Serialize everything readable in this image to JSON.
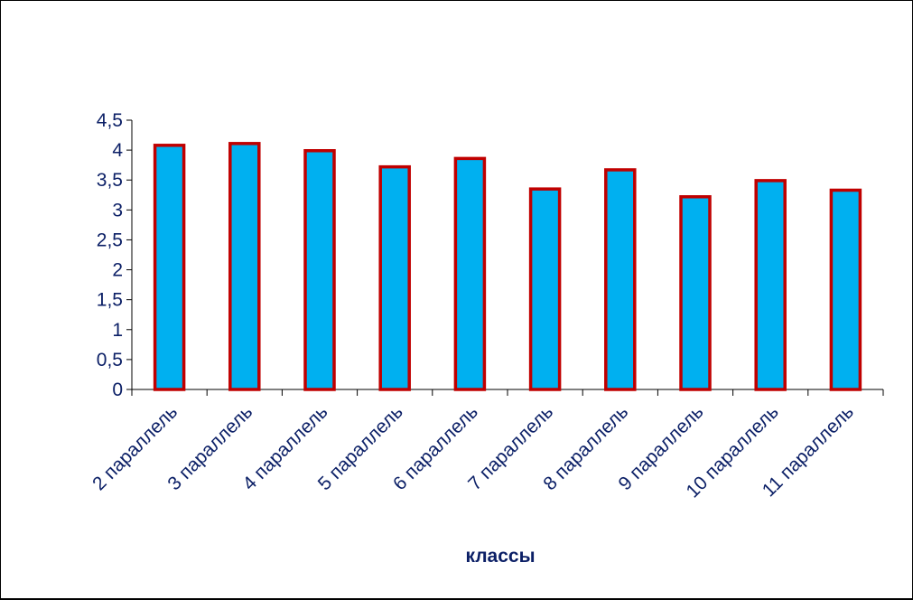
{
  "chart_data": {
    "type": "bar",
    "title": "",
    "xlabel": "классы",
    "ylabel": "",
    "ylim": [
      0,
      4.5
    ],
    "yticks": [
      "0",
      "0,5",
      "1",
      "1,5",
      "2",
      "2,5",
      "3",
      "3,5",
      "4",
      "4,5"
    ],
    "ytick_values": [
      0,
      0.5,
      1,
      1.5,
      2,
      2.5,
      3,
      3.5,
      4,
      4.5
    ],
    "categories": [
      "2 параллель",
      "3 параллель",
      "4 параллель",
      "5 параллель",
      "6 параллель",
      "7 параллель",
      "8 параллель",
      "9 параллель",
      "10 параллель",
      "11 параллель"
    ],
    "values": [
      4.08,
      4.11,
      3.99,
      3.72,
      3.86,
      3.35,
      3.67,
      3.22,
      3.49,
      3.33
    ],
    "grid": false,
    "legend": "none",
    "colors": {
      "bar_fill": "#00b0f0",
      "bar_stroke": "#c00000",
      "text": "#0b1f66",
      "axis": "#000000"
    }
  }
}
